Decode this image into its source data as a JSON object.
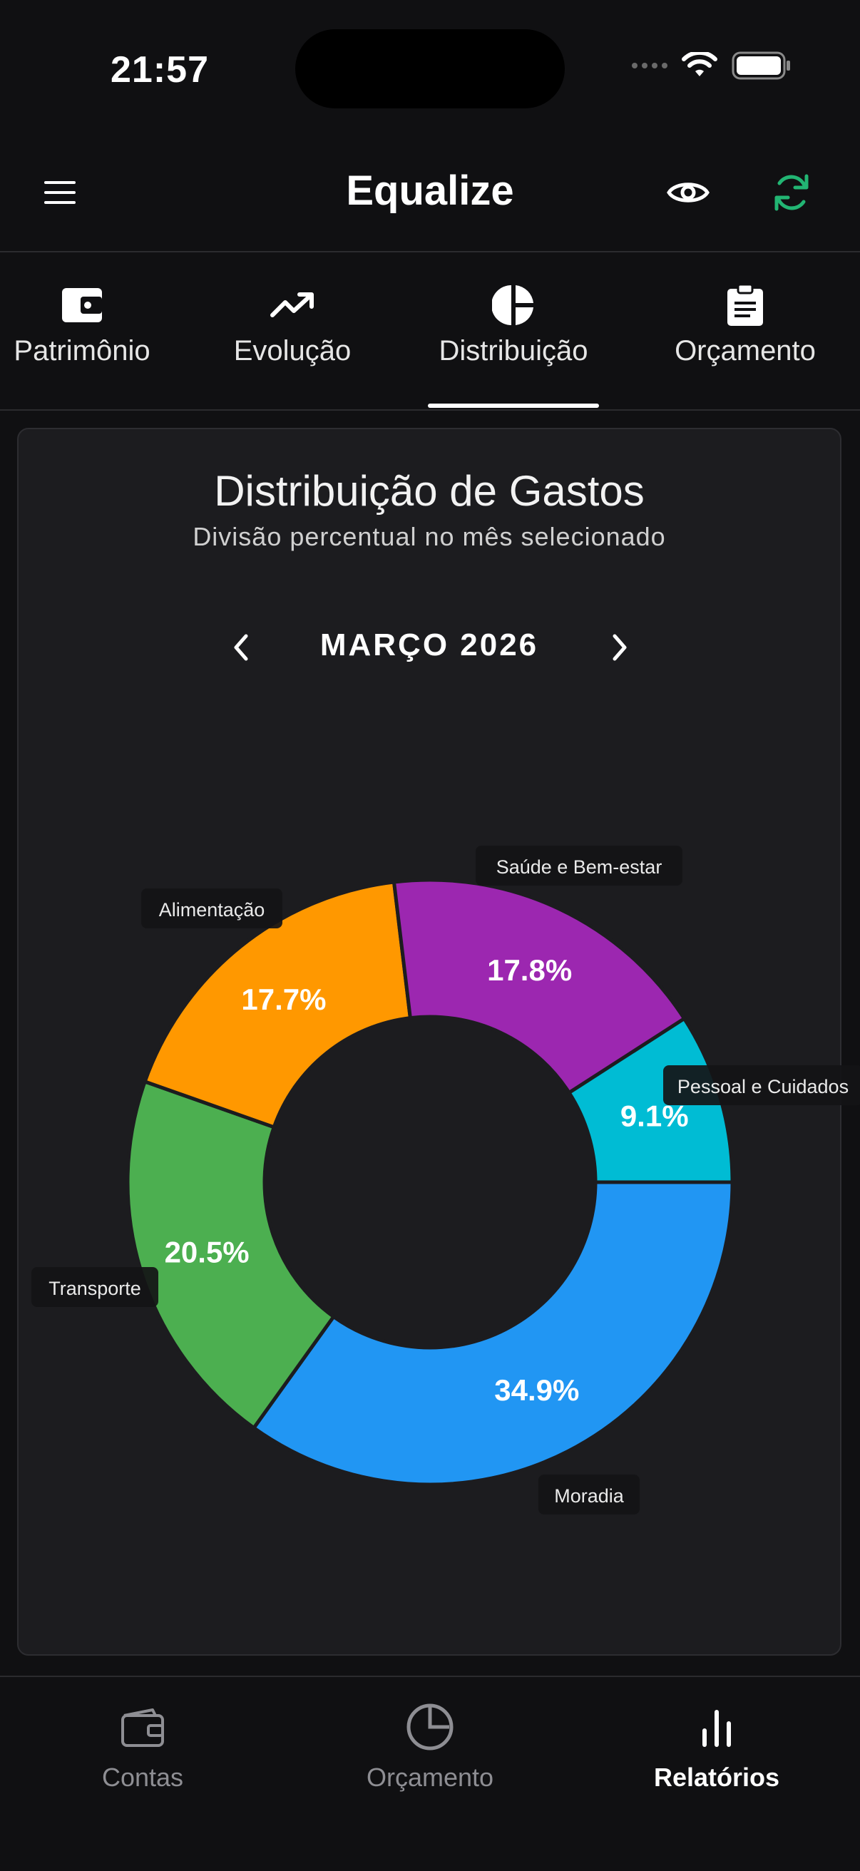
{
  "status_bar": {
    "time": "21:57"
  },
  "app_bar": {
    "title": "Equalize",
    "accent_color": "#22b573"
  },
  "tabs": [
    {
      "label": "Patrimônio",
      "icon": "wallet-icon"
    },
    {
      "label": "Evolução",
      "icon": "trending-up-icon"
    },
    {
      "label": "Distribuição",
      "icon": "pie-chart-icon",
      "selected": true
    },
    {
      "label": "Orçamento",
      "icon": "clipboard-icon"
    }
  ],
  "card": {
    "title": "Distribuição de Gastos",
    "subtitle": "Divisão percentual no mês selecionado",
    "month": "MARÇO 2026"
  },
  "chart_data": {
    "type": "pie",
    "style": "donut",
    "categories": [
      "Moradia",
      "Transporte",
      "Alimentação",
      "Saúde e Bem-estar",
      "Pessoal e Cuidados"
    ],
    "values": [
      34.9,
      20.5,
      17.7,
      17.8,
      9.1
    ],
    "value_labels": [
      "34.9%",
      "20.5%",
      "17.7%",
      "17.8%",
      "9.1%"
    ],
    "colors": [
      "#2196f3",
      "#4caf50",
      "#ff9800",
      "#9c27b0",
      "#00bcd4"
    ]
  },
  "bottom_nav": [
    {
      "label": "Contas",
      "icon": "wallet-icon"
    },
    {
      "label": "Orçamento",
      "icon": "pie-chart-icon"
    },
    {
      "label": "Relatórios",
      "icon": "bar-chart-icon",
      "selected": true
    }
  ]
}
